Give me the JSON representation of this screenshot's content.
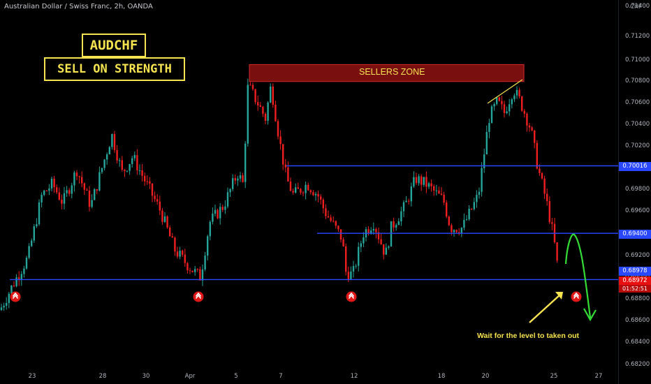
{
  "header": {
    "title": "Australian Dollar / Swiss Franc, 2h, OANDA",
    "currency": "CHF"
  },
  "annotations": {
    "symbol": "AUDCHF",
    "bias": "SELL ON STRENGTH",
    "zone_label": "SELLERS ZONE",
    "note": "Wait for the level to taken out"
  },
  "price_tags": {
    "level_upper": "0.70016",
    "level_middle": "0.69400",
    "level_lower": "0.68978",
    "last_price": "0.68972",
    "countdown": "01:52:51"
  },
  "colors": {
    "up_candle": "#26a69a",
    "down_candle": "#ef1f1f",
    "level_line": "#2948ff",
    "zone_fill": "#7a0f0f",
    "annotation_yellow": "#f5e34f",
    "projection_green": "#33dd33"
  },
  "chart_data": {
    "type": "candlestick",
    "symbol": "AUDCHF",
    "timeframe": "2h",
    "ylim": [
      0.6818,
      0.7148
    ],
    "y_ticks": [
      "0.71400",
      "0.71200",
      "0.71000",
      "0.70800",
      "0.70600",
      "0.70400",
      "0.70200",
      "0.70000",
      "0.69800",
      "0.69600",
      "0.69200",
      "0.69000",
      "0.68800",
      "0.68600",
      "0.68400",
      "0.68200"
    ],
    "x_ticks": [
      "23",
      "28",
      "30",
      "Apr",
      "5",
      "7",
      "12",
      "18",
      "20",
      "25",
      "27"
    ],
    "levels": [
      0.70016,
      0.694,
      0.68978
    ],
    "sellers_zone": [
      0.70785,
      0.7094
    ],
    "last_price": 0.68972,
    "path": [
      [
        0,
        0.687
      ],
      [
        20,
        0.6895
      ],
      [
        40,
        0.6918
      ],
      [
        60,
        0.6975
      ],
      [
        75,
        0.6985
      ],
      [
        90,
        0.6968
      ],
      [
        110,
        0.6998
      ],
      [
        130,
        0.6965
      ],
      [
        160,
        0.703
      ],
      [
        175,
        0.6995
      ],
      [
        190,
        0.701
      ],
      [
        210,
        0.6985
      ],
      [
        230,
        0.696
      ],
      [
        250,
        0.6925
      ],
      [
        270,
        0.691
      ],
      [
        287,
        0.69
      ],
      [
        300,
        0.695
      ],
      [
        320,
        0.6965
      ],
      [
        340,
        0.6995
      ],
      [
        348,
        0.6985
      ],
      [
        355,
        0.7075
      ],
      [
        368,
        0.706
      ],
      [
        380,
        0.7045
      ],
      [
        388,
        0.7075
      ],
      [
        400,
        0.7025
      ],
      [
        410,
        0.699
      ],
      [
        420,
        0.6975
      ],
      [
        440,
        0.6985
      ],
      [
        455,
        0.6975
      ],
      [
        465,
        0.696
      ],
      [
        490,
        0.6935
      ],
      [
        495,
        0.6905
      ],
      [
        505,
        0.6902
      ],
      [
        520,
        0.694
      ],
      [
        535,
        0.695
      ],
      [
        552,
        0.692
      ],
      [
        560,
        0.6945
      ],
      [
        580,
        0.6965
      ],
      [
        595,
        0.699
      ],
      [
        610,
        0.6985
      ],
      [
        635,
        0.697
      ],
      [
        645,
        0.6945
      ],
      [
        662,
        0.6945
      ],
      [
        685,
        0.6975
      ],
      [
        700,
        0.7045
      ],
      [
        712,
        0.706
      ],
      [
        722,
        0.705
      ],
      [
        735,
        0.7072
      ],
      [
        745,
        0.706
      ],
      [
        760,
        0.7035
      ],
      [
        770,
        0.7
      ],
      [
        782,
        0.697
      ],
      [
        790,
        0.6945
      ],
      [
        796,
        0.6922
      ],
      [
        800,
        0.68972
      ]
    ]
  }
}
